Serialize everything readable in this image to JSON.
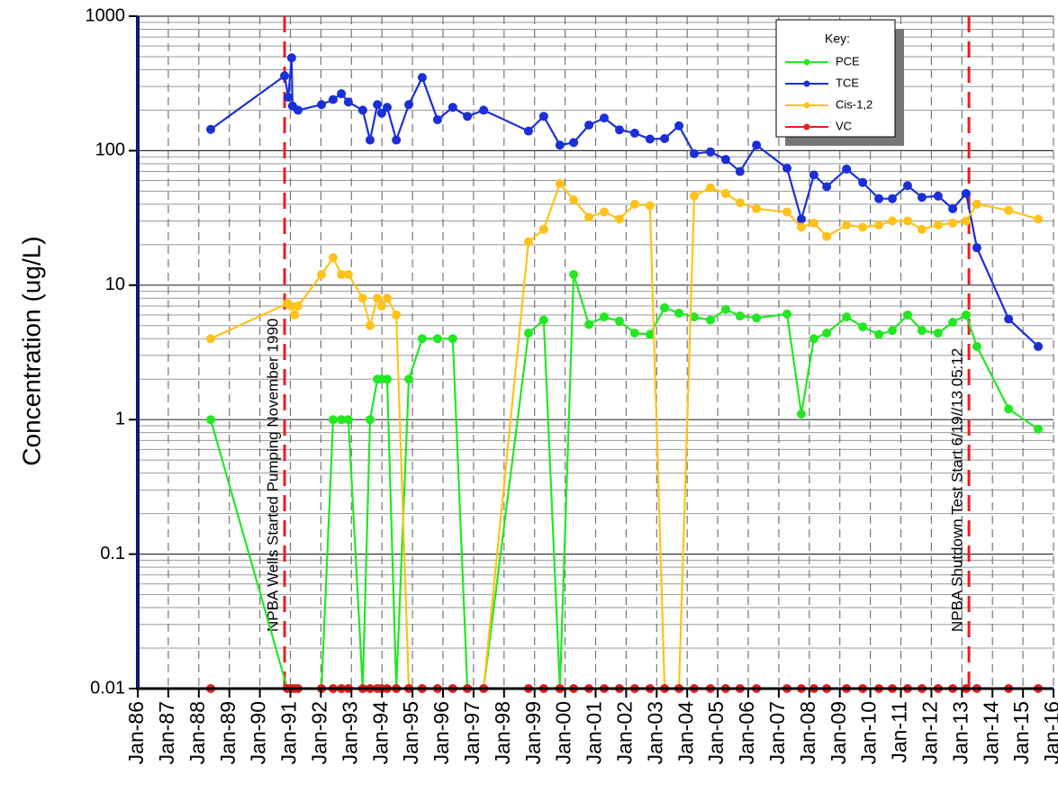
{
  "chart_data": {
    "type": "line",
    "ylabel": "Concentration (ug/L)",
    "yscale": "log",
    "ylim": [
      0.01,
      1000
    ],
    "yticks": [
      0.01,
      0.1,
      1,
      10,
      100,
      1000
    ],
    "minor_grid": true,
    "xlim": [
      1986,
      2016
    ],
    "xticks": [
      {
        "value": 1986,
        "label": "Jan-86"
      },
      {
        "value": 1987,
        "label": "Jan-87"
      },
      {
        "value": 1988,
        "label": "Jan-88"
      },
      {
        "value": 1989,
        "label": "Jan-89"
      },
      {
        "value": 1990,
        "label": "Jan-90"
      },
      {
        "value": 1991,
        "label": "Jan-91"
      },
      {
        "value": 1992,
        "label": "Jan-92"
      },
      {
        "value": 1993,
        "label": "Jan-93"
      },
      {
        "value": 1994,
        "label": "Jan-94"
      },
      {
        "value": 1995,
        "label": "Jan-95"
      },
      {
        "value": 1996,
        "label": "Jan-96"
      },
      {
        "value": 1997,
        "label": "Jan-97"
      },
      {
        "value": 1998,
        "label": "Jan-98"
      },
      {
        "value": 1999,
        "label": "Jan-99"
      },
      {
        "value": 2000,
        "label": "Jan-00"
      },
      {
        "value": 2001,
        "label": "Jan-01"
      },
      {
        "value": 2002,
        "label": "Jan-02"
      },
      {
        "value": 2003,
        "label": "Jan-03"
      },
      {
        "value": 2004,
        "label": "Jan-04"
      },
      {
        "value": 2005,
        "label": "Jan-05"
      },
      {
        "value": 2006,
        "label": "Jan-06"
      },
      {
        "value": 2007,
        "label": "Jan-07"
      },
      {
        "value": 2008,
        "label": "Jan-08"
      },
      {
        "value": 2009,
        "label": "Jan-09"
      },
      {
        "value": 2010,
        "label": "Jan-10"
      },
      {
        "value": 2011,
        "label": "Jan-11"
      },
      {
        "value": 2012,
        "label": "Jan-12"
      },
      {
        "value": 2013,
        "label": "Jan-13"
      },
      {
        "value": 2014,
        "label": "Jan-14"
      },
      {
        "value": 2015,
        "label": "Jan-15"
      },
      {
        "value": 2016,
        "label": "Jan-16"
      }
    ],
    "grid": true,
    "legend_title": "Key:",
    "legend_position": "upper right",
    "annotations": [
      {
        "x": 1990.81,
        "text": "NPBA Wells Started Pumping November 1990",
        "color": "#e81e1e"
      },
      {
        "x": 2013.23,
        "text": "NPBA Shutdown Test Start 6/19//13 05:12",
        "color": "#e81e1e"
      }
    ],
    "series": [
      {
        "name": "PCE",
        "color": "#22e822",
        "x": [
          1988.39,
          1990.9,
          1991.02,
          1991.14,
          1991.25,
          1992.02,
          1992.4,
          1992.67,
          1992.9,
          1993.37,
          1993.61,
          1993.85,
          1993.99,
          1994.17,
          1994.47,
          1994.88,
          1995.32,
          1995.82,
          1996.32,
          1996.8,
          1997.33,
          1998.8,
          1999.3,
          1999.83,
          2000.28,
          2000.78,
          2001.28,
          2001.78,
          2002.28,
          2002.78,
          2003.26,
          2003.73,
          2004.23,
          2004.76,
          2005.26,
          2005.73,
          2006.27,
          2007.27,
          2007.74,
          2008.15,
          2008.57,
          2009.22,
          2009.75,
          2010.28,
          2010.72,
          2011.22,
          2011.69,
          2012.22,
          2012.7,
          2013.14,
          2013.49,
          2014.53,
          2015.5
        ],
        "values": [
          1,
          0.01,
          0.01,
          0.01,
          0.01,
          0.01,
          1,
          1,
          1,
          0.01,
          1,
          2,
          2,
          2,
          0.01,
          2,
          4,
          4,
          4,
          0.01,
          0.01,
          4.4,
          5.5,
          0.01,
          12,
          5.1,
          5.8,
          5.4,
          4.4,
          4.3,
          6.8,
          6.2,
          5.8,
          5.5,
          6.6,
          5.9,
          5.7,
          6.1,
          1.1,
          4,
          4.4,
          5.8,
          4.9,
          4.3,
          4.6,
          6,
          4.6,
          4.4,
          5.3,
          6,
          3.5,
          1.2,
          0.85
        ]
      },
      {
        "name": "TCE",
        "color": "#1a2fd8",
        "x": [
          1988.39,
          1990.81,
          1990.93,
          1991.04,
          1991.07,
          1991.25,
          1992.02,
          1992.4,
          1992.67,
          1992.9,
          1993.37,
          1993.61,
          1993.85,
          1993.99,
          1994.17,
          1994.47,
          1994.88,
          1995.32,
          1995.82,
          1996.32,
          1996.8,
          1997.33,
          1998.8,
          1999.3,
          1999.83,
          2000.28,
          2000.78,
          2001.28,
          2001.78,
          2002.28,
          2002.78,
          2003.26,
          2003.73,
          2004.23,
          2004.76,
          2005.26,
          2005.73,
          2006.27,
          2007.27,
          2007.74,
          2008.15,
          2008.57,
          2009.22,
          2009.75,
          2010.28,
          2010.72,
          2011.22,
          2011.69,
          2012.22,
          2012.7,
          2013.14,
          2013.49,
          2014.53,
          2015.5
        ],
        "values": [
          144,
          360,
          250,
          490,
          215,
          200,
          220,
          240,
          265,
          230,
          200,
          120,
          220,
          190,
          210,
          120,
          220,
          350,
          170,
          210,
          180,
          200,
          140,
          180,
          110,
          115,
          155,
          175,
          143,
          135,
          122,
          123,
          153,
          95,
          98,
          86,
          70,
          110,
          74,
          31,
          66,
          54,
          73,
          58,
          44,
          44,
          55,
          45,
          46,
          37,
          48,
          19,
          5.6,
          3.5
        ]
      },
      {
        "name": "Cis-1,2",
        "color": "#ffc21a",
        "x": [
          1988.39,
          1990.9,
          1991.02,
          1991.14,
          1991.25,
          1992.02,
          1992.4,
          1992.67,
          1992.9,
          1993.37,
          1993.61,
          1993.85,
          1993.99,
          1994.17,
          1994.47,
          1994.88,
          1995.32,
          1995.82,
          1996.32,
          1996.8,
          1997.33,
          1998.8,
          1999.3,
          1999.83,
          2000.28,
          2000.78,
          2001.28,
          2001.78,
          2002.28,
          2002.78,
          2003.26,
          2003.73,
          2004.23,
          2004.76,
          2005.26,
          2005.73,
          2006.27,
          2007.27,
          2007.74,
          2008.15,
          2008.57,
          2009.22,
          2009.75,
          2010.28,
          2010.72,
          2011.22,
          2011.69,
          2012.22,
          2012.7,
          2013.14,
          2013.49,
          2014.53,
          2015.5
        ],
        "values": [
          4,
          7.3,
          7,
          6,
          7,
          12,
          16,
          12,
          12,
          8,
          5,
          8,
          7,
          8,
          6,
          0.01,
          0.01,
          0.01,
          0.01,
          0.01,
          0.01,
          21,
          26,
          57,
          43,
          32,
          35,
          31,
          40,
          39,
          0.01,
          0.01,
          46,
          53,
          48,
          41,
          37,
          35,
          27,
          29,
          23,
          28,
          27,
          28,
          30,
          30,
          26,
          28,
          29,
          30,
          40,
          36,
          31
        ]
      },
      {
        "name": "VC",
        "color": "#e81e1e",
        "x": [
          1988.39,
          1990.9,
          1991.02,
          1991.14,
          1991.25,
          1992.02,
          1992.4,
          1992.67,
          1992.9,
          1993.37,
          1993.61,
          1993.85,
          1993.99,
          1994.17,
          1994.47,
          1994.88,
          1995.32,
          1995.82,
          1996.32,
          1996.8,
          1997.33,
          1998.8,
          1999.3,
          1999.83,
          2000.28,
          2000.78,
          2001.28,
          2001.78,
          2002.28,
          2002.78,
          2003.26,
          2003.73,
          2004.23,
          2004.76,
          2005.26,
          2005.73,
          2006.27,
          2007.27,
          2007.74,
          2008.15,
          2008.57,
          2009.22,
          2009.75,
          2010.28,
          2010.72,
          2011.22,
          2011.69,
          2012.22,
          2012.7,
          2013.14,
          2013.49,
          2014.53,
          2015.5
        ],
        "values": [
          0.01,
          0.01,
          0.01,
          0.01,
          0.01,
          0.01,
          0.01,
          0.01,
          0.01,
          0.01,
          0.01,
          0.01,
          0.01,
          0.01,
          0.01,
          0.01,
          0.01,
          0.01,
          0.01,
          0.01,
          0.01,
          0.01,
          0.01,
          0.01,
          0.01,
          0.01,
          0.01,
          0.01,
          0.01,
          0.01,
          0.01,
          0.01,
          0.01,
          0.01,
          0.01,
          0.01,
          0.01,
          0.01,
          0.01,
          0.01,
          0.01,
          0.01,
          0.01,
          0.01,
          0.01,
          0.01,
          0.01,
          0.01,
          0.01,
          0.01,
          0.01,
          0.01,
          0.01
        ]
      }
    ]
  }
}
